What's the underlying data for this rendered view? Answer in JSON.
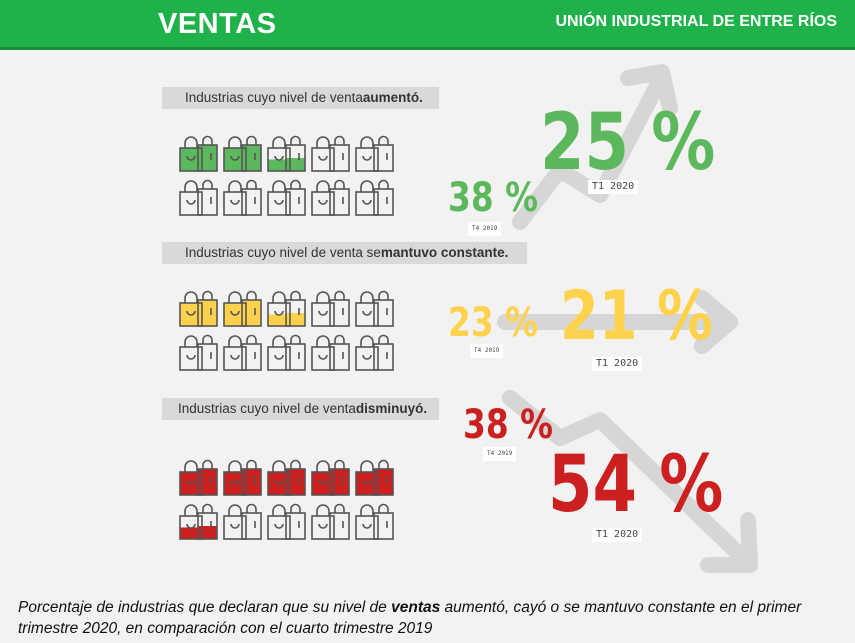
{
  "header": {
    "title": "VENTAS",
    "organization": "UNIÓN INDUSTRIAL DE ENTRE RÍOS"
  },
  "colors": {
    "brand_green": "#1fb24a",
    "increase": "#5cb85c",
    "constant": "#ffd24d",
    "decrease": "#cc1f1f",
    "arrow": "#d6d6d6"
  },
  "sections": [
    {
      "label_prefix": "Industrias cuyo nivel de venta ",
      "label_bold": "aumentó.",
      "color": "#5cb85c",
      "previous": {
        "value": "38 %",
        "period": "T4 2019"
      },
      "current": {
        "value": "25 %",
        "period": "T1 2020"
      },
      "filled_fraction": 0.25
    },
    {
      "label_prefix": "Industrias cuyo nivel de venta se ",
      "label_bold": "mantuvo constante.",
      "color": "#ffd24d",
      "previous": {
        "value": "23 %",
        "period": "T4 2019"
      },
      "current": {
        "value": "21 %",
        "period": "T1 2020"
      },
      "filled_fraction": 0.21
    },
    {
      "label_prefix": "Industrias cuyo nivel de venta ",
      "label_bold": "disminuyó.",
      "color": "#cc1f1f",
      "previous": {
        "value": "38 %",
        "period": "T4 2019"
      },
      "current": {
        "value": "54 %",
        "period": "T1 2020"
      },
      "filled_fraction": 0.54
    }
  ],
  "caption": {
    "prefix": "Porcentaje de industrias que declaran que su nivel de ",
    "bold": "ventas",
    "suffix": " aumentó, cayó o se mantuvo constante en el primer trimestre 2020, en comparación con el cuarto trimestre 2019"
  }
}
